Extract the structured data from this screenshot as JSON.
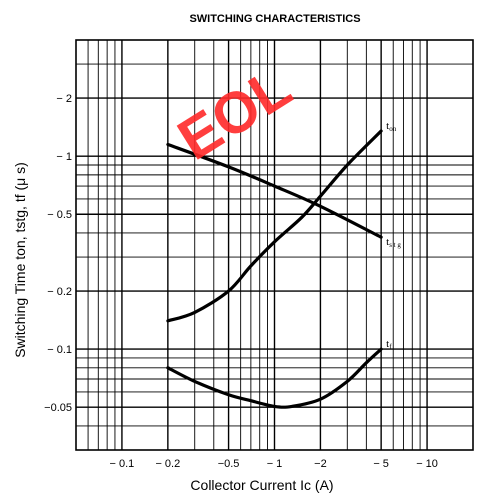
{
  "chart_data": {
    "type": "line",
    "title": "SWITCHING CHARACTERISTICS",
    "xlabel": "Collector Current  Ic (A)",
    "ylabel": "Switching Time  ton, tstg, tf (μ s)",
    "x_scale": "log",
    "y_scale": "log",
    "xlim": [
      0.05,
      20
    ],
    "ylim": [
      0.03,
      4
    ],
    "x_ticks": [
      {
        "value": 0.1,
        "label": "− 0.1"
      },
      {
        "value": 0.2,
        "label": "− 0.2"
      },
      {
        "value": 0.5,
        "label": "−0.5"
      },
      {
        "value": 1,
        "label": "− 1"
      },
      {
        "value": 2,
        "label": "−2"
      },
      {
        "value": 5,
        "label": "− 5"
      },
      {
        "value": 10,
        "label": "− 10"
      }
    ],
    "y_ticks": [
      {
        "value": 2,
        "label": "− 2"
      },
      {
        "value": 1,
        "label": "− 1"
      },
      {
        "value": 0.5,
        "label": "− 0.5"
      },
      {
        "value": 0.2,
        "label": "− 0.2"
      },
      {
        "value": 0.1,
        "label": "− 0.1"
      },
      {
        "value": 0.05,
        "label": "−0.05"
      }
    ],
    "grid": true,
    "series": [
      {
        "name": "ton",
        "label_main": "t",
        "label_sub": "on",
        "x": [
          0.2,
          0.3,
          0.5,
          0.7,
          1.0,
          1.5,
          2.0,
          3.0,
          5.0
        ],
        "y": [
          0.14,
          0.155,
          0.2,
          0.27,
          0.36,
          0.48,
          0.62,
          0.9,
          1.35
        ]
      },
      {
        "name": "tstg",
        "label_main": "t",
        "label_sub": "s t g",
        "x": [
          0.2,
          0.5,
          1.0,
          2.0,
          5.0
        ],
        "y": [
          1.15,
          0.88,
          0.7,
          0.55,
          0.38
        ]
      },
      {
        "name": "tf",
        "label_main": "t",
        "label_sub": "f",
        "x": [
          0.2,
          0.3,
          0.5,
          0.7,
          1.0,
          1.3,
          2.0,
          3.0,
          4.0,
          5.0
        ],
        "y": [
          0.08,
          0.068,
          0.058,
          0.054,
          0.0505,
          0.0505,
          0.055,
          0.068,
          0.085,
          0.1
        ]
      }
    ]
  },
  "watermark": "EOL"
}
